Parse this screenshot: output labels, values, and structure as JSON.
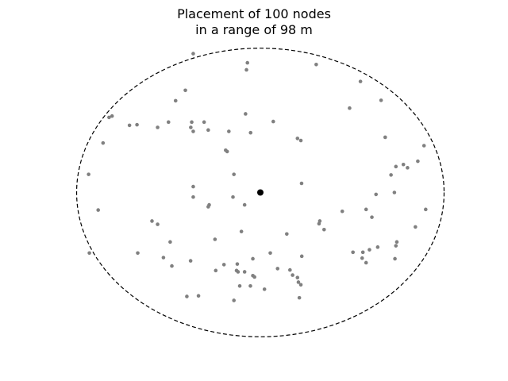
{
  "chart_data": {
    "type": "scatter",
    "title_lines": [
      "Placement of 100 nodes",
      "in a range of 98 m"
    ],
    "xlabel": "",
    "ylabel": "",
    "axes_visible": false,
    "grid": false,
    "range_m": 98,
    "xlim": [
      -105,
      105
    ],
    "ylim": [
      -100,
      100
    ],
    "boundary": {
      "shape": "circle",
      "center": [
        0,
        0
      ],
      "radius": 98,
      "style": "dashed",
      "color": "#000000"
    },
    "center_node": {
      "name": "center",
      "x": 0,
      "y": 0,
      "color": "#000000"
    },
    "node_color": "#808080",
    "nodes": [
      {
        "x": -35.8,
        "y": 94.3
      },
      {
        "x": -6.9,
        "y": 88.1
      },
      {
        "x": -7.4,
        "y": 83.3
      },
      {
        "x": 29.8,
        "y": 86.9
      },
      {
        "x": 53.4,
        "y": 75.4
      },
      {
        "x": -40.0,
        "y": 69.4
      },
      {
        "x": -45.2,
        "y": 62.3
      },
      {
        "x": 64.4,
        "y": 62.6
      },
      {
        "x": 47.6,
        "y": 57.3
      },
      {
        "x": -79.1,
        "y": 51.9
      },
      {
        "x": -80.7,
        "y": 51.0
      },
      {
        "x": -7.9,
        "y": 53.4
      },
      {
        "x": -49.0,
        "y": 47.8
      },
      {
        "x": -36.6,
        "y": 47.8
      },
      {
        "x": -30.0,
        "y": 47.8
      },
      {
        "x": 6.9,
        "y": 48.2
      },
      {
        "x": -65.8,
        "y": 46.0
      },
      {
        "x": -69.8,
        "y": 45.6
      },
      {
        "x": -54.8,
        "y": 44.2
      },
      {
        "x": -37.1,
        "y": 44.2
      },
      {
        "x": -35.8,
        "y": 41.5
      },
      {
        "x": -27.8,
        "y": 42.4
      },
      {
        "x": -16.8,
        "y": 41.5
      },
      {
        "x": -5.2,
        "y": 40.6
      },
      {
        "x": 19.8,
        "y": 36.7
      },
      {
        "x": 21.6,
        "y": 35.3
      },
      {
        "x": 66.6,
        "y": 37.5
      },
      {
        "x": -83.9,
        "y": 33.6
      },
      {
        "x": 87.3,
        "y": 31.8
      },
      {
        "x": -18.5,
        "y": 28.7
      },
      {
        "x": -17.7,
        "y": 27.8
      },
      {
        "x": 84.0,
        "y": 21.2
      },
      {
        "x": 76.3,
        "y": 19.0
      },
      {
        "x": 72.3,
        "y": 17.6
      },
      {
        "x": 78.5,
        "y": 16.8
      },
      {
        "x": -91.6,
        "y": 12.3
      },
      {
        "x": -14.1,
        "y": 12.3
      },
      {
        "x": 69.7,
        "y": 11.9
      },
      {
        "x": 22.0,
        "y": 6.2
      },
      {
        "x": -35.8,
        "y": 4.0
      },
      {
        "x": 71.5,
        "y": 0.0
      },
      {
        "x": 61.7,
        "y": -1.3
      },
      {
        "x": -14.6,
        "y": -3.1
      },
      {
        "x": -35.8,
        "y": -3.1
      },
      {
        "x": -8.4,
        "y": -8.4
      },
      {
        "x": -27.3,
        "y": -8.4
      },
      {
        "x": -27.8,
        "y": -9.7
      },
      {
        "x": -86.5,
        "y": -11.9
      },
      {
        "x": 56.4,
        "y": -11.5
      },
      {
        "x": 88.2,
        "y": -11.5
      },
      {
        "x": 43.7,
        "y": -12.8
      },
      {
        "x": 59.5,
        "y": -16.8
      },
      {
        "x": -57.8,
        "y": -19.4
      },
      {
        "x": -54.8,
        "y": -21.6
      },
      {
        "x": 31.7,
        "y": -19.4
      },
      {
        "x": 31.3,
        "y": -21.2
      },
      {
        "x": 34.0,
        "y": -25.2
      },
      {
        "x": 82.7,
        "y": -23.4
      },
      {
        "x": -10.1,
        "y": -26.5
      },
      {
        "x": 14.1,
        "y": -28.2
      },
      {
        "x": -24.2,
        "y": -31.8
      },
      {
        "x": -48.1,
        "y": -33.6
      },
      {
        "x": 72.8,
        "y": -33.6
      },
      {
        "x": 72.3,
        "y": -36.2
      },
      {
        "x": 62.6,
        "y": -37.1
      },
      {
        "x": 58.2,
        "y": -38.9
      },
      {
        "x": -91.2,
        "y": -41.1
      },
      {
        "x": -65.4,
        "y": -41.1
      },
      {
        "x": 49.4,
        "y": -40.6
      },
      {
        "x": 54.7,
        "y": -40.6
      },
      {
        "x": 5.3,
        "y": -41.1
      },
      {
        "x": 22.1,
        "y": -43.3
      },
      {
        "x": -51.7,
        "y": -44.2
      },
      {
        "x": -4.0,
        "y": -45.0
      },
      {
        "x": -37.2,
        "y": -46.4
      },
      {
        "x": 54.3,
        "y": -44.6
      },
      {
        "x": 71.8,
        "y": -45.0
      },
      {
        "x": 56.4,
        "y": -47.7
      },
      {
        "x": -12.3,
        "y": -48.6
      },
      {
        "x": -19.4,
        "y": -49.0
      },
      {
        "x": -47.2,
        "y": -49.9
      },
      {
        "x": 9.2,
        "y": -51.7
      },
      {
        "x": 15.8,
        "y": -52.6
      },
      {
        "x": -23.8,
        "y": -53.0
      },
      {
        "x": -12.7,
        "y": -53.0
      },
      {
        "x": -11.9,
        "y": -53.9
      },
      {
        "x": -8.4,
        "y": -53.9
      },
      {
        "x": 17.2,
        "y": -56.1
      },
      {
        "x": -4.0,
        "y": -56.5
      },
      {
        "x": -3.1,
        "y": -57.4
      },
      {
        "x": 19.8,
        "y": -57.8
      },
      {
        "x": 20.3,
        "y": -60.9
      },
      {
        "x": 21.6,
        "y": -62.7
      },
      {
        "x": -11.0,
        "y": -63.5
      },
      {
        "x": -5.3,
        "y": -63.5
      },
      {
        "x": 2.2,
        "y": -65.7
      },
      {
        "x": -39.2,
        "y": -70.6
      },
      {
        "x": -33.0,
        "y": -70.2
      },
      {
        "x": 20.8,
        "y": -71.5
      },
      {
        "x": -14.1,
        "y": -73.3
      }
    ]
  }
}
